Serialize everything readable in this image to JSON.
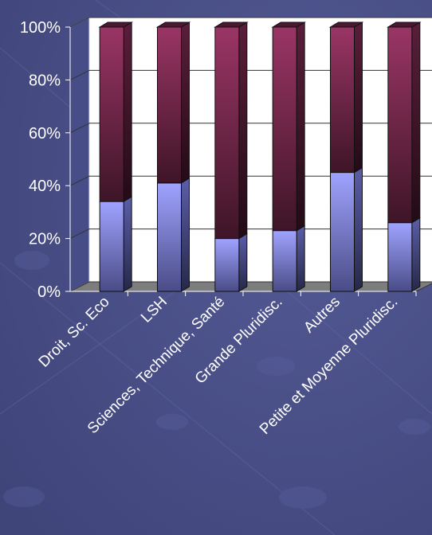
{
  "colors": {
    "background": "#474d86",
    "lower_series": "#9a9cf2",
    "upper_series": "#8e2f5c",
    "plot_wall": "#ffffff",
    "floor": "#7d7d7d"
  },
  "chart_data": {
    "type": "bar",
    "stacked": "percent",
    "style": "3d",
    "categories": [
      "Droit, Sc. Eco",
      "LSH",
      "Sciences, Technique, Santé",
      "Grande Pluridisc.",
      "Autres",
      "Petite et Moyenne Pluridisc."
    ],
    "series": [
      {
        "values": [
          34,
          41,
          20,
          23,
          45,
          26
        ],
        "color": "#9a9cf2"
      },
      {
        "values": [
          66,
          59,
          80,
          77,
          55,
          74
        ],
        "color": "#8e2f5c"
      }
    ],
    "ylim": [
      0,
      100
    ],
    "yticks": [
      "0%",
      "20%",
      "40%",
      "60%",
      "80%",
      "100%"
    ],
    "grid": true,
    "legend": "none"
  }
}
